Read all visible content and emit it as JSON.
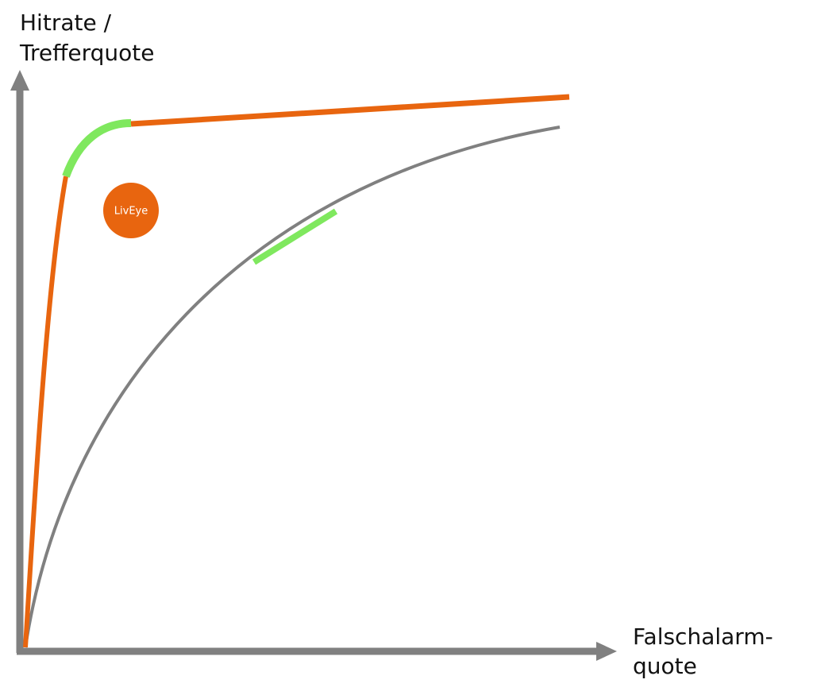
{
  "axes": {
    "y_label": [
      "Hitrate /",
      "Trefferquote"
    ],
    "x_label": [
      "Falschalarm-",
      "quote"
    ]
  },
  "logo": "LivEye"
}
